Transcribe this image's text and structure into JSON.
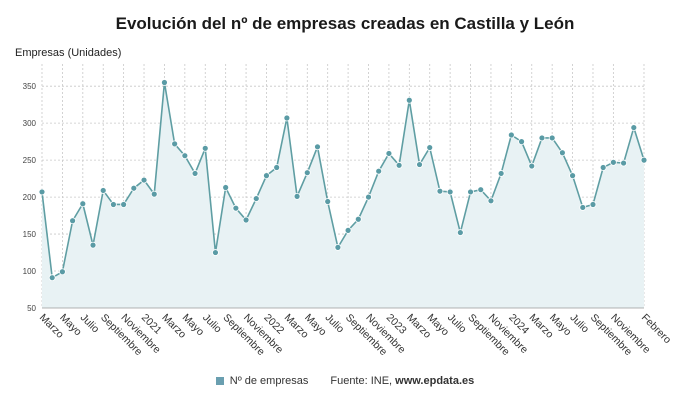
{
  "colors": {
    "line": "#5f9ea3",
    "area": "#e8f2f4",
    "marker": "#5a9ba5",
    "grid": "#c8c8c8",
    "legend_swatch": "#6a9fb0"
  },
  "legend": {
    "series_label": "Nº de empresas",
    "source_text": "Fuente: INE, ",
    "source_link": "www.epdata.es"
  },
  "chart_data": {
    "type": "area",
    "title": "Evolución del nº de empresas creadas en Castilla y León",
    "ylabel": "Empresas (Unidades)",
    "xlabel": "",
    "ylim": [
      50,
      380
    ],
    "yticks": [
      50,
      100,
      150,
      200,
      250,
      300,
      350
    ],
    "grid": true,
    "legend_position": "bottom",
    "x_tick_labels": [
      "Marzo",
      "Mayo",
      "Julio",
      "Septiembre",
      "Noviembre",
      "2021",
      "Marzo",
      "Mayo",
      "Julio",
      "Septiembre",
      "Noviembre",
      "2022",
      "Marzo",
      "Mayo",
      "Julio",
      "Septiembre",
      "Noviembre",
      "2023",
      "Marzo",
      "Mayo",
      "Julio",
      "Septiembre",
      "Noviembre",
      "2024",
      "Marzo",
      "Mayo",
      "Julio",
      "Septiembre",
      "Noviembre",
      "Febrero"
    ],
    "x_tick_positions": [
      0,
      2,
      4,
      6,
      8,
      10,
      12,
      14,
      16,
      18,
      20,
      22,
      24,
      26,
      28,
      30,
      32,
      34,
      36,
      38,
      40,
      42,
      44,
      46,
      48,
      50,
      52,
      54,
      56,
      59
    ],
    "series": [
      {
        "name": "Nº de empresas",
        "values": [
          207,
          91,
          99,
          168,
          191,
          135,
          209,
          190,
          190,
          212,
          223,
          204,
          355,
          272,
          256,
          232,
          266,
          125,
          213,
          185,
          169,
          198,
          229,
          240,
          307,
          201,
          233,
          268,
          194,
          132,
          155,
          170,
          200,
          235,
          259,
          243,
          331,
          244,
          267,
          208,
          207,
          152,
          207,
          210,
          195,
          232,
          284,
          275,
          242,
          280,
          280,
          260,
          229,
          186,
          190,
          240,
          247,
          246,
          294,
          250
        ]
      }
    ]
  }
}
